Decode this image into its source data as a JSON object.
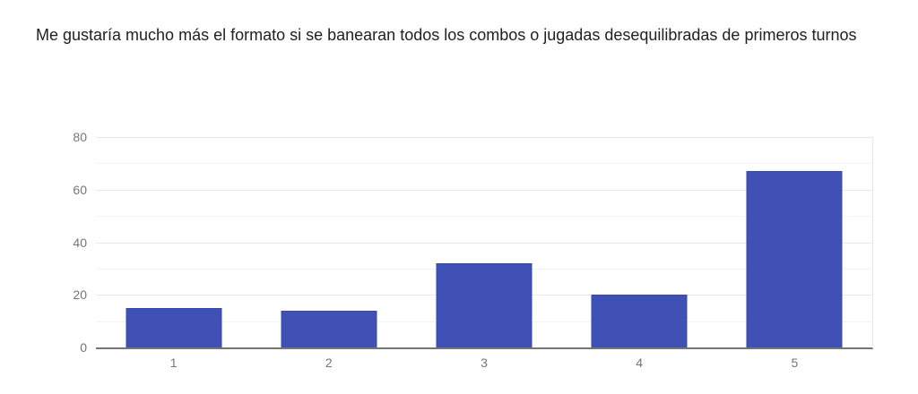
{
  "page": {
    "background": "#ffffff"
  },
  "chart_data": {
    "type": "bar",
    "title": "Me gustaría mucho más el formato si se banearan todos los combos o jugadas desequilibradas de primeros turnos",
    "categories": [
      "1",
      "2",
      "3",
      "4",
      "5"
    ],
    "values": [
      15,
      14,
      32,
      20,
      67
    ],
    "xlabel": "",
    "ylabel": "",
    "ylim": [
      0,
      80
    ],
    "yticks": [
      0,
      20,
      40,
      60,
      80
    ],
    "minor_grid_step": 10,
    "grid": true,
    "legend": "none",
    "colors": {
      "bar": "#3f51b5",
      "bar_border": "#3949ab",
      "axis_line": "#757575",
      "grid_major": "#e8e8e8",
      "grid_minor": "#f4f4f4",
      "tick_label": "#757575",
      "title": "#212121"
    }
  }
}
